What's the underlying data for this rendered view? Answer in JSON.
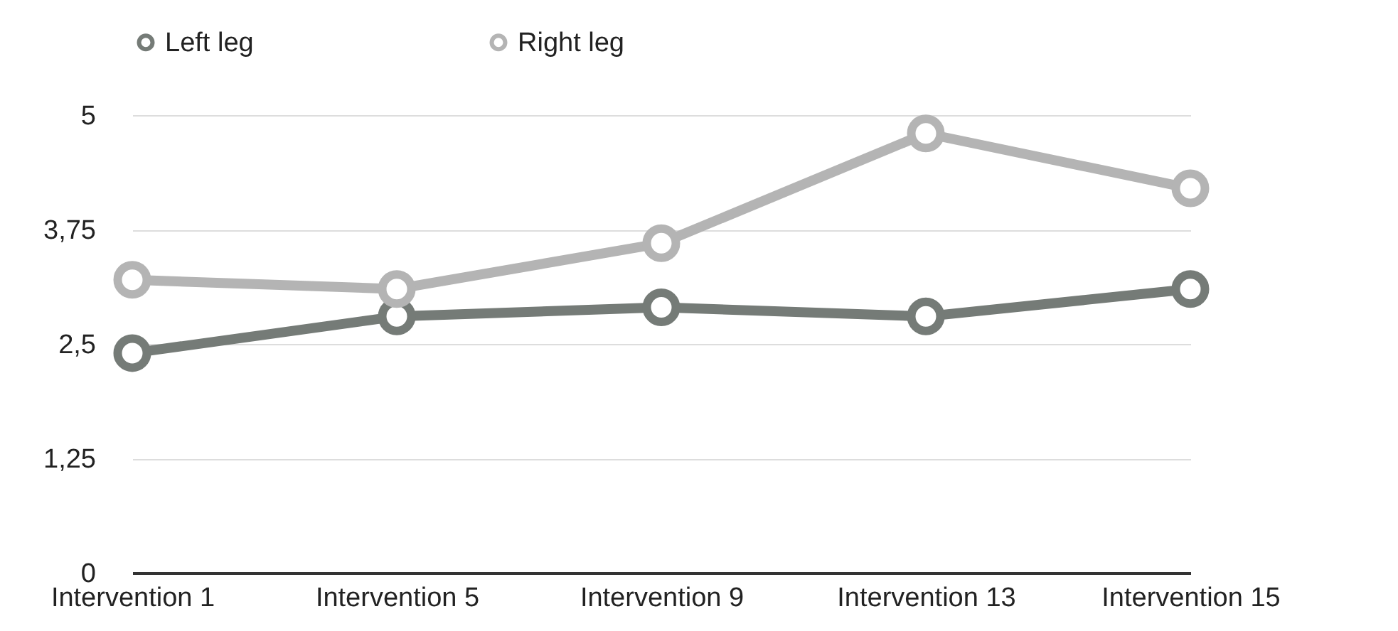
{
  "chart_data": {
    "type": "line",
    "categories": [
      "Intervention 1",
      "Intervention 5",
      "Intervention 9",
      "Intervention 13",
      "Intervention 15"
    ],
    "series": [
      {
        "name": "Left leg",
        "color": "#757b77",
        "values": [
          2.4,
          2.8,
          2.9,
          2.8,
          3.1
        ]
      },
      {
        "name": "Right leg",
        "color": "#b4b4b4",
        "values": [
          3.2,
          3.1,
          3.6,
          4.8,
          4.2
        ]
      }
    ],
    "ylim": [
      0,
      5
    ],
    "yticks": [
      0,
      {
        "value": 1.25,
        "label": "1,25"
      },
      {
        "value": 2.5,
        "label": "2,5"
      },
      {
        "value": 3.75,
        "label": "3,75"
      },
      5
    ],
    "grid": "y",
    "legend": "top",
    "marker": "circle"
  }
}
